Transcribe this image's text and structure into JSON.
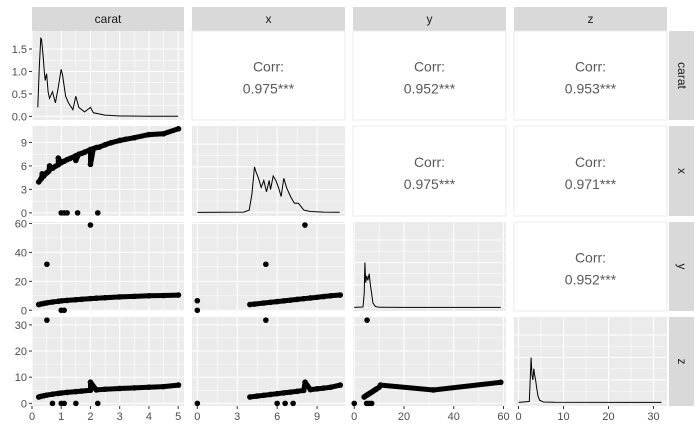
{
  "chart_data": {
    "type": "scatter-matrix",
    "variables": [
      "carat",
      "x",
      "y",
      "z"
    ],
    "colors": {
      "panel_bg": "#ebebeb",
      "grid": "#ffffff",
      "strip_bg": "#d9d9d9",
      "points": "#000000",
      "corr_text": "#595959",
      "tick_text": "#4d4d4d"
    },
    "axes": {
      "carat": {
        "range": [
          0,
          5.2
        ],
        "ticks": [
          0,
          1,
          2,
          3,
          4,
          5
        ],
        "tick_labels": [
          "0",
          "1",
          "2",
          "3",
          "4",
          "5"
        ]
      },
      "x": {
        "range": [
          -0.4,
          11.1
        ],
        "ticks": [
          0,
          3,
          6,
          9
        ],
        "tick_labels": [
          "0",
          "3",
          "6",
          "9"
        ]
      },
      "y": {
        "range": [
          -0.5,
          61
        ],
        "ticks": [
          0,
          20,
          40,
          60
        ],
        "tick_labels": [
          "0",
          "20",
          "40",
          "60"
        ]
      },
      "z": {
        "range": [
          -1,
          33
        ],
        "ticks": [
          0,
          10,
          20,
          30
        ],
        "tick_labels": [
          "0",
          "10",
          "20",
          "30"
        ]
      }
    },
    "density_axis": {
      "label_variable": "carat",
      "ylim": [
        -0.08,
        1.9
      ],
      "ticks": [
        0.0,
        0.5,
        1.0,
        1.5
      ],
      "tick_labels": [
        "0.0",
        "0.5",
        "1.0",
        "1.5"
      ]
    },
    "correlations": [
      {
        "row": "carat",
        "col": "x",
        "label": "Corr:",
        "value": "0.975***"
      },
      {
        "row": "carat",
        "col": "y",
        "label": "Corr:",
        "value": "0.952***"
      },
      {
        "row": "carat",
        "col": "z",
        "label": "Corr:",
        "value": "0.953***"
      },
      {
        "row": "x",
        "col": "y",
        "label": "Corr:",
        "value": "0.975***"
      },
      {
        "row": "x",
        "col": "z",
        "label": "Corr:",
        "value": "0.971***"
      },
      {
        "row": "y",
        "col": "z",
        "label": "Corr:",
        "value": "0.952***"
      }
    ],
    "densities": {
      "carat": [
        [
          0.2,
          0.2
        ],
        [
          0.25,
          1.1
        ],
        [
          0.3,
          1.75
        ],
        [
          0.33,
          1.7
        ],
        [
          0.38,
          1.35
        ],
        [
          0.42,
          1.0
        ],
        [
          0.45,
          0.8
        ],
        [
          0.5,
          0.95
        ],
        [
          0.55,
          0.55
        ],
        [
          0.6,
          0.4
        ],
        [
          0.7,
          0.55
        ],
        [
          0.8,
          0.3
        ],
        [
          0.9,
          0.65
        ],
        [
          1.0,
          1.05
        ],
        [
          1.05,
          0.9
        ],
        [
          1.15,
          0.45
        ],
        [
          1.25,
          0.3
        ],
        [
          1.4,
          0.15
        ],
        [
          1.5,
          0.45
        ],
        [
          1.6,
          0.2
        ],
        [
          1.8,
          0.1
        ],
        [
          2.0,
          0.2
        ],
        [
          2.1,
          0.08
        ],
        [
          2.5,
          0.03
        ],
        [
          3.0,
          0.01
        ],
        [
          4.0,
          0.005
        ],
        [
          5.0,
          0.002
        ]
      ],
      "x": [
        [
          0,
          0
        ],
        [
          3.5,
          0.005
        ],
        [
          3.9,
          0.05
        ],
        [
          4.1,
          0.4
        ],
        [
          4.3,
          1.0
        ],
        [
          4.4,
          0.9
        ],
        [
          4.6,
          0.75
        ],
        [
          4.8,
          0.55
        ],
        [
          5.0,
          0.7
        ],
        [
          5.2,
          0.45
        ],
        [
          5.4,
          0.7
        ],
        [
          5.5,
          0.5
        ],
        [
          5.7,
          0.8
        ],
        [
          5.9,
          0.7
        ],
        [
          6.1,
          0.55
        ],
        [
          6.3,
          0.35
        ],
        [
          6.5,
          0.75
        ],
        [
          6.7,
          0.55
        ],
        [
          7.0,
          0.35
        ],
        [
          7.3,
          0.2
        ],
        [
          7.6,
          0.2
        ],
        [
          8.0,
          0.05
        ],
        [
          8.5,
          0.02
        ],
        [
          9.5,
          0.005
        ],
        [
          10.7,
          0.001
        ]
      ],
      "y": [
        [
          0,
          0
        ],
        [
          3.5,
          0.01
        ],
        [
          4.0,
          0.3
        ],
        [
          4.3,
          1.0
        ],
        [
          4.6,
          0.55
        ],
        [
          5.0,
          0.7
        ],
        [
          5.5,
          0.6
        ],
        [
          6.0,
          0.75
        ],
        [
          6.5,
          0.5
        ],
        [
          7.0,
          0.3
        ],
        [
          7.5,
          0.1
        ],
        [
          8.5,
          0.02
        ],
        [
          10,
          0.005
        ],
        [
          20,
          0.001
        ],
        [
          31.8,
          0.001
        ],
        [
          58.9,
          0.001
        ]
      ],
      "z": [
        [
          0,
          0
        ],
        [
          2.4,
          0.02
        ],
        [
          2.6,
          0.5
        ],
        [
          2.8,
          1.0
        ],
        [
          3.0,
          0.6
        ],
        [
          3.2,
          0.5
        ],
        [
          3.4,
          0.75
        ],
        [
          3.6,
          0.6
        ],
        [
          3.8,
          0.5
        ],
        [
          4.0,
          0.35
        ],
        [
          4.3,
          0.15
        ],
        [
          4.7,
          0.05
        ],
        [
          5.5,
          0.01
        ],
        [
          8,
          0.003
        ],
        [
          31.8,
          0.001
        ]
      ]
    },
    "scatter": {
      "x_vs_carat": [
        [
          0.23,
          3.95
        ],
        [
          0.3,
          4.3
        ],
        [
          0.31,
          4.35
        ],
        [
          0.33,
          4.45
        ],
        [
          0.4,
          4.7
        ],
        [
          0.5,
          5.1
        ],
        [
          0.52,
          5.15
        ],
        [
          0.58,
          5.35
        ],
        [
          0.7,
          5.7
        ],
        [
          0.72,
          5.75
        ],
        [
          0.8,
          5.95
        ],
        [
          0.9,
          6.15
        ],
        [
          1.0,
          6.4
        ],
        [
          1.01,
          6.45
        ],
        [
          1.1,
          6.6
        ],
        [
          1.2,
          6.8
        ],
        [
          1.3,
          6.95
        ],
        [
          1.5,
          7.3
        ],
        [
          1.6,
          7.5
        ],
        [
          1.7,
          7.6
        ],
        [
          1.8,
          7.75
        ],
        [
          2.0,
          8.1
        ],
        [
          2.1,
          8.2
        ],
        [
          2.2,
          8.35
        ],
        [
          2.5,
          8.7
        ],
        [
          2.7,
          8.95
        ],
        [
          3.0,
          9.25
        ],
        [
          3.5,
          9.6
        ],
        [
          4.0,
          10.0
        ],
        [
          4.5,
          10.1
        ],
        [
          5.01,
          10.74
        ],
        [
          0.35,
          5.0
        ],
        [
          0.6,
          6.0
        ],
        [
          1.0,
          0.0
        ],
        [
          1.1,
          0.0
        ],
        [
          1.2,
          0.0
        ],
        [
          1.56,
          0.0
        ],
        [
          2.25,
          0.0
        ],
        [
          2.0,
          6.2
        ],
        [
          1.5,
          6.7
        ],
        [
          0.9,
          7.0
        ],
        [
          3.2,
          9.4
        ],
        [
          2.3,
          8.4
        ]
      ],
      "y_vs_carat": [
        [
          0.23,
          3.98
        ],
        [
          0.3,
          4.3
        ],
        [
          0.4,
          4.7
        ],
        [
          0.5,
          5.1
        ],
        [
          0.7,
          5.7
        ],
        [
          0.9,
          6.2
        ],
        [
          1.0,
          6.45
        ],
        [
          1.2,
          6.8
        ],
        [
          1.5,
          7.3
        ],
        [
          1.7,
          7.6
        ],
        [
          2.0,
          8.1
        ],
        [
          2.2,
          8.35
        ],
        [
          2.5,
          8.7
        ],
        [
          3.0,
          9.25
        ],
        [
          3.5,
          9.6
        ],
        [
          4.0,
          10.0
        ],
        [
          4.5,
          10.2
        ],
        [
          5.01,
          10.5
        ],
        [
          2.0,
          58.9
        ],
        [
          0.51,
          31.8
        ],
        [
          1.0,
          0.0
        ],
        [
          1.1,
          0.0
        ]
      ],
      "z_vs_carat": [
        [
          0.23,
          2.43
        ],
        [
          0.3,
          2.65
        ],
        [
          0.4,
          2.9
        ],
        [
          0.5,
          3.15
        ],
        [
          0.7,
          3.5
        ],
        [
          0.9,
          3.8
        ],
        [
          1.0,
          3.95
        ],
        [
          1.2,
          4.2
        ],
        [
          1.5,
          4.5
        ],
        [
          1.7,
          4.7
        ],
        [
          2.0,
          5.0
        ],
        [
          2.2,
          5.15
        ],
        [
          2.5,
          5.4
        ],
        [
          3.0,
          5.7
        ],
        [
          3.5,
          5.9
        ],
        [
          4.0,
          6.2
        ],
        [
          4.5,
          6.4
        ],
        [
          5.01,
          6.98
        ],
        [
          0.51,
          31.8
        ],
        [
          2.0,
          8.1
        ],
        [
          1.0,
          0.0
        ],
        [
          1.1,
          0.0
        ],
        [
          1.5,
          0.0
        ],
        [
          2.25,
          0.0
        ],
        [
          0.7,
          0.0
        ]
      ],
      "y_vs_x": [
        [
          0,
          0
        ],
        [
          0,
          6.6
        ],
        [
          3.95,
          3.98
        ],
        [
          4.3,
          4.3
        ],
        [
          5.0,
          5.0
        ],
        [
          5.5,
          5.5
        ],
        [
          6.0,
          6.0
        ],
        [
          6.5,
          6.5
        ],
        [
          7.0,
          7.0
        ],
        [
          7.5,
          7.5
        ],
        [
          8.0,
          8.0
        ],
        [
          8.5,
          8.5
        ],
        [
          9.0,
          9.0
        ],
        [
          9.5,
          9.5
        ],
        [
          10.0,
          10.0
        ],
        [
          10.74,
          10.54
        ],
        [
          8.09,
          58.9
        ],
        [
          5.15,
          31.8
        ]
      ],
      "z_vs_x": [
        [
          0,
          0
        ],
        [
          3.95,
          2.43
        ],
        [
          4.5,
          2.8
        ],
        [
          5.0,
          3.1
        ],
        [
          5.5,
          3.4
        ],
        [
          6.0,
          3.7
        ],
        [
          6.5,
          4.0
        ],
        [
          7.0,
          4.3
        ],
        [
          7.5,
          4.6
        ],
        [
          8.0,
          4.95
        ],
        [
          8.5,
          5.25
        ],
        [
          9.0,
          5.55
        ],
        [
          9.5,
          5.85
        ],
        [
          10.0,
          6.15
        ],
        [
          10.74,
          6.98
        ],
        [
          5.15,
          31.8
        ],
        [
          6.0,
          0.0
        ],
        [
          6.6,
          0.0
        ],
        [
          7.2,
          0.0
        ],
        [
          8.1,
          8.1
        ]
      ],
      "z_vs_y": [
        [
          0,
          0
        ],
        [
          3.98,
          2.43
        ],
        [
          4.5,
          2.8
        ],
        [
          5.0,
          3.1
        ],
        [
          5.5,
          3.4
        ],
        [
          6.0,
          3.7
        ],
        [
          6.5,
          4.0
        ],
        [
          7.0,
          4.3
        ],
        [
          7.5,
          4.6
        ],
        [
          8.0,
          4.95
        ],
        [
          8.5,
          5.25
        ],
        [
          9.0,
          5.55
        ],
        [
          10.0,
          6.15
        ],
        [
          10.54,
          6.98
        ],
        [
          5.15,
          31.8
        ],
        [
          31.8,
          5.12
        ],
        [
          58.9,
          8.06
        ],
        [
          5.0,
          0.0
        ],
        [
          6.0,
          0.0
        ],
        [
          7.0,
          0.0
        ]
      ]
    }
  }
}
